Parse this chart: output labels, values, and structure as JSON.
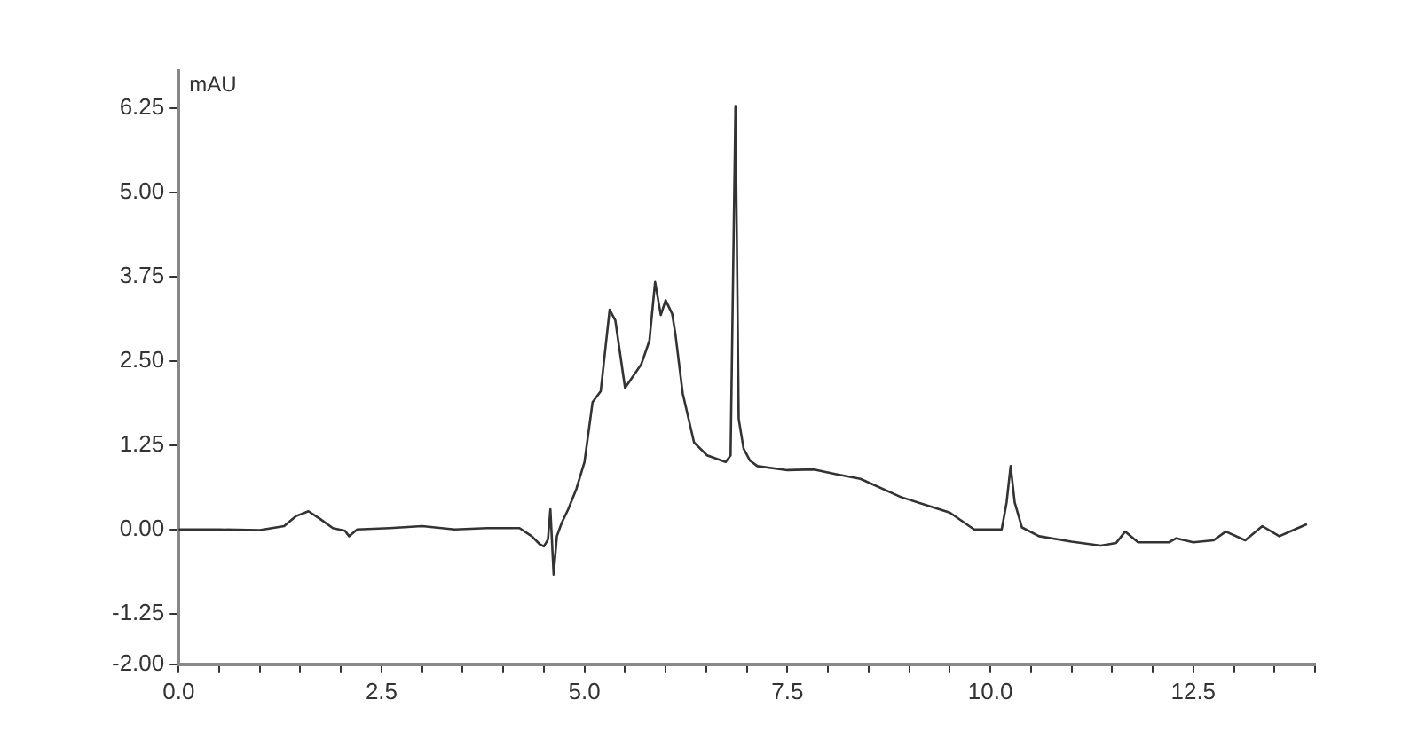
{
  "chart_data": {
    "type": "line",
    "ylabel": "mAU",
    "xlim": [
      0,
      14
    ],
    "ylim": [
      -2,
      6.8
    ],
    "xticks": [
      {
        "value": 0,
        "label": "0.0"
      },
      {
        "value": 0.5,
        "label": null
      },
      {
        "value": 1,
        "label": null
      },
      {
        "value": 1.5,
        "label": null
      },
      {
        "value": 2,
        "label": null
      },
      {
        "value": 2.5,
        "label": "2.5"
      },
      {
        "value": 3,
        "label": null
      },
      {
        "value": 3.5,
        "label": null
      },
      {
        "value": 4,
        "label": null
      },
      {
        "value": 4.5,
        "label": null
      },
      {
        "value": 5,
        "label": "5.0"
      },
      {
        "value": 5.5,
        "label": null
      },
      {
        "value": 6,
        "label": null
      },
      {
        "value": 6.5,
        "label": null
      },
      {
        "value": 7,
        "label": null
      },
      {
        "value": 7.5,
        "label": "7.5"
      },
      {
        "value": 8,
        "label": null
      },
      {
        "value": 8.5,
        "label": null
      },
      {
        "value": 9,
        "label": null
      },
      {
        "value": 9.5,
        "label": null
      },
      {
        "value": 10,
        "label": "10.0"
      },
      {
        "value": 10.5,
        "label": null
      },
      {
        "value": 11,
        "label": null
      },
      {
        "value": 11.5,
        "label": null
      },
      {
        "value": 12,
        "label": null
      },
      {
        "value": 12.5,
        "label": "12.5"
      },
      {
        "value": 13,
        "label": null
      },
      {
        "value": 13.5,
        "label": null
      },
      {
        "value": 14,
        "label": null
      }
    ],
    "yticks": [
      {
        "value": -2,
        "label": "-2.00"
      },
      {
        "value": -1.25,
        "label": "-1.25"
      },
      {
        "value": 0,
        "label": "0.00"
      },
      {
        "value": 1.25,
        "label": "1.25"
      },
      {
        "value": 2.5,
        "label": "2.50"
      },
      {
        "value": 3.75,
        "label": "3.75"
      },
      {
        "value": 5,
        "label": "5.00"
      },
      {
        "value": 6.25,
        "label": "6.25"
      }
    ],
    "grid": false,
    "legend": false,
    "marker": "none",
    "line_style": "solid",
    "series": [
      {
        "color": "#333333",
        "x": [
          0,
          0.5,
          1.0,
          1.3,
          1.45,
          1.6,
          1.75,
          1.9,
          2.05,
          2.1,
          2.2,
          2.6,
          3.0,
          3.4,
          3.8,
          4.2,
          4.35,
          4.45,
          4.5,
          4.55,
          4.58,
          4.62,
          4.66,
          4.72,
          4.8,
          4.9,
          5.0,
          5.1,
          5.2,
          5.25,
          5.31,
          5.38,
          5.5,
          5.7,
          5.8,
          5.87,
          5.94,
          6.0,
          6.08,
          6.12,
          6.21,
          6.35,
          6.51,
          6.74,
          6.8,
          6.86,
          6.9,
          6.96,
          7.04,
          7.13,
          7.5,
          7.83,
          8.1,
          8.4,
          8.9,
          9.24,
          9.5,
          9.8,
          10.14,
          10.2,
          10.25,
          10.3,
          10.39,
          10.6,
          11.0,
          11.36,
          11.55,
          11.66,
          11.82,
          12.2,
          12.29,
          12.5,
          12.75,
          12.9,
          13.14,
          13.35,
          13.56,
          13.75,
          13.9
        ],
        "values": [
          0,
          0,
          -0.01,
          0.05,
          0.2,
          0.27,
          0.15,
          0.02,
          -0.02,
          -0.1,
          0,
          0.02,
          0.05,
          0,
          0.02,
          0.02,
          -0.1,
          -0.22,
          -0.25,
          -0.15,
          0.3,
          -0.67,
          -0.1,
          0.1,
          0.3,
          0.6,
          1.0,
          1.89,
          2.05,
          2.6,
          3.26,
          3.1,
          2.1,
          2.45,
          2.8,
          3.67,
          3.18,
          3.4,
          3.2,
          2.9,
          2.02,
          1.29,
          1.1,
          1.0,
          1.1,
          6.28,
          1.64,
          1.2,
          1.02,
          0.94,
          0.88,
          0.89,
          0.82,
          0.75,
          0.48,
          0.35,
          0.25,
          0.0,
          0.0,
          0.4,
          0.94,
          0.4,
          0.03,
          -0.1,
          -0.18,
          -0.24,
          -0.2,
          -0.03,
          -0.19,
          -0.19,
          -0.13,
          -0.19,
          -0.16,
          -0.03,
          -0.16,
          0.05,
          -0.1,
          0.0,
          0.08
        ]
      }
    ]
  }
}
